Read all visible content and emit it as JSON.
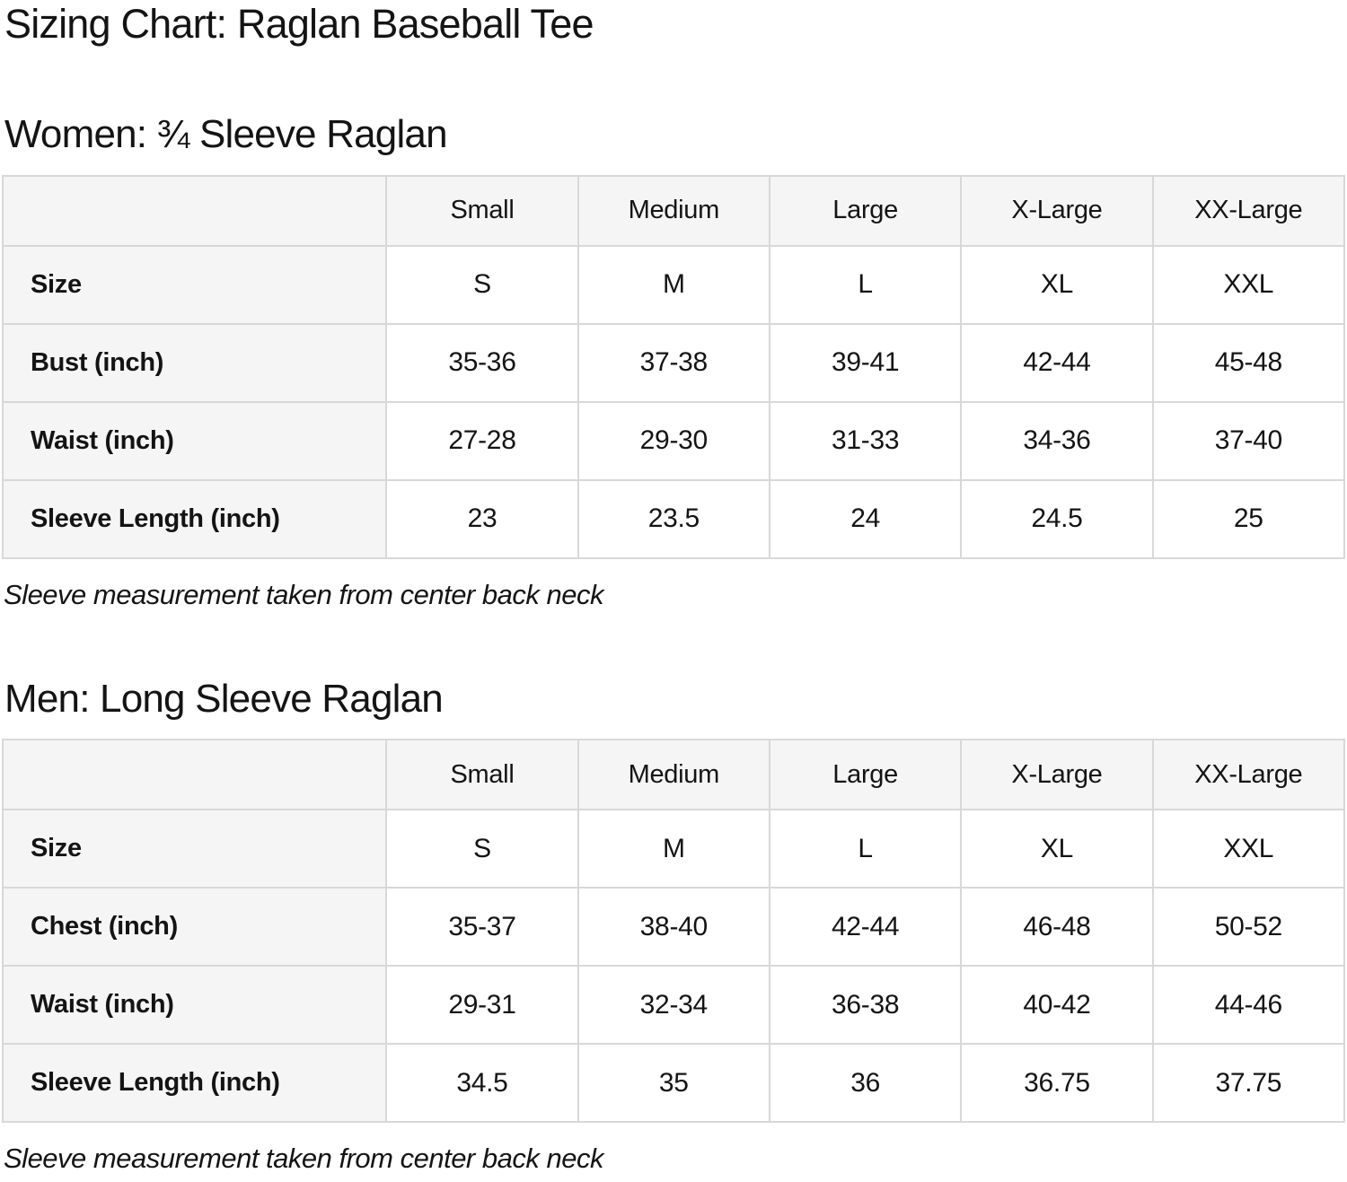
{
  "page": {
    "title": "Sizing Chart: Raglan Baseball Tee"
  },
  "colors": {
    "text": "#141414",
    "header_bg": "#f5f5f5",
    "border": "#d8d8d8",
    "background": "#ffffff"
  },
  "sections": [
    {
      "heading": "Women: ¾ Sleeve Raglan",
      "note": "Sleeve measurement taken from center back neck",
      "table": {
        "columns": [
          "",
          "Small",
          "Medium",
          "Large",
          "X-Large",
          "XX-Large"
        ],
        "rows": [
          {
            "label": "Size",
            "values": [
              "S",
              "M",
              "L",
              "XL",
              "XXL"
            ]
          },
          {
            "label": "Bust (inch)",
            "values": [
              "35-36",
              "37-38",
              "39-41",
              "42-44",
              "45-48"
            ]
          },
          {
            "label": "Waist (inch)",
            "values": [
              "27-28",
              "29-30",
              "31-33",
              "34-36",
              "37-40"
            ]
          },
          {
            "label": "Sleeve Length (inch)",
            "values": [
              "23",
              "23.5",
              "24",
              "24.5",
              "25"
            ]
          }
        ]
      }
    },
    {
      "heading": "Men: Long Sleeve Raglan",
      "note": "Sleeve measurement taken from center back neck",
      "table": {
        "columns": [
          "",
          "Small",
          "Medium",
          "Large",
          "X-Large",
          "XX-Large"
        ],
        "rows": [
          {
            "label": "Size",
            "values": [
              "S",
              "M",
              "L",
              "XL",
              "XXL"
            ]
          },
          {
            "label": "Chest (inch)",
            "values": [
              "35-37",
              "38-40",
              "42-44",
              "46-48",
              "50-52"
            ]
          },
          {
            "label": "Waist (inch)",
            "values": [
              "29-31",
              "32-34",
              "36-38",
              "40-42",
              "44-46"
            ]
          },
          {
            "label": "Sleeve Length (inch)",
            "values": [
              "34.5",
              "35",
              "36",
              "36.75",
              "37.75"
            ]
          }
        ]
      }
    }
  ]
}
